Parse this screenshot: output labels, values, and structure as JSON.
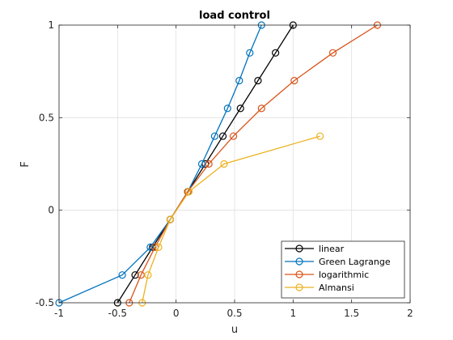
{
  "chart_data": {
    "type": "line",
    "title": "load control",
    "xlabel": "u",
    "ylabel": "F",
    "xlim": [
      -1,
      2
    ],
    "ylim": [
      -0.5,
      1
    ],
    "xticks": [
      -1,
      -0.5,
      0,
      0.5,
      1,
      1.5,
      2
    ],
    "xtick_labels": [
      "-1",
      "-0.5",
      "0",
      "0.5",
      "1",
      "1.5",
      "2"
    ],
    "yticks": [
      -0.5,
      0,
      0.5,
      1
    ],
    "ytick_labels": [
      "-0.5",
      "0",
      "0.5",
      "1"
    ],
    "grid": true,
    "legend_position": "bottom-right",
    "marker": "open-circle",
    "series": [
      {
        "name": "linear",
        "color": "#000000",
        "x": [
          -0.5,
          -0.35,
          -0.2,
          -0.05,
          0.1,
          0.25,
          0.4,
          0.55,
          0.7,
          0.85,
          1.0
        ],
        "y": [
          -0.5,
          -0.35,
          -0.2,
          -0.05,
          0.1,
          0.25,
          0.4,
          0.55,
          0.7,
          0.85,
          1.0
        ]
      },
      {
        "name": "Green Lagrange",
        "color": "#0072BD",
        "x": [
          -1.0,
          -0.46,
          -0.22,
          -0.05,
          0.1,
          0.22,
          0.33,
          0.44,
          0.54,
          0.63,
          0.73
        ],
        "y": [
          -0.5,
          -0.35,
          -0.2,
          -0.05,
          0.1,
          0.25,
          0.4,
          0.55,
          0.7,
          0.85,
          1.0
        ]
      },
      {
        "name": "logarithmic",
        "color": "#D95319",
        "x": [
          -0.4,
          -0.3,
          -0.18,
          -0.05,
          0.1,
          0.28,
          0.49,
          0.73,
          1.01,
          1.34,
          1.72
        ],
        "y": [
          -0.5,
          -0.35,
          -0.2,
          -0.05,
          0.1,
          0.25,
          0.4,
          0.55,
          0.7,
          0.85,
          1.0
        ]
      },
      {
        "name": "Almansi",
        "color": "#EDB120",
        "x": [
          -0.29,
          -0.24,
          -0.15,
          -0.05,
          0.11,
          0.41,
          1.23
        ],
        "y": [
          -0.5,
          -0.35,
          -0.2,
          -0.05,
          0.1,
          0.25,
          0.4
        ]
      }
    ]
  }
}
